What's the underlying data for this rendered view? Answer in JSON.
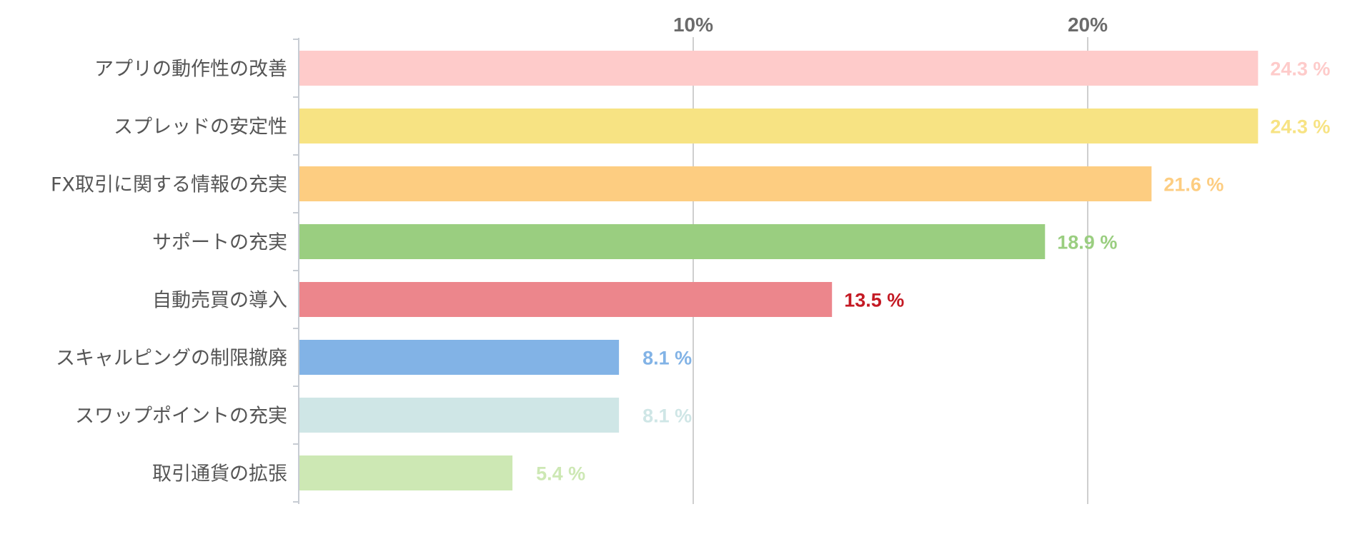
{
  "chart_data": {
    "type": "bar",
    "orientation": "horizontal",
    "categories": [
      "アプリの動作性の改善",
      "スプレッドの安定性",
      "FX取引に関する情報の充実",
      "サポートの充実",
      "自動売買の導入",
      "スキャルピングの制限撤廃",
      "スワップポイントの充実",
      "取引通貨の拡張"
    ],
    "values": [
      24.3,
      24.3,
      21.6,
      18.9,
      13.5,
      8.1,
      8.1,
      5.4
    ],
    "value_labels": [
      "24.3 %",
      "24.3 %",
      "21.6 %",
      "18.9 %",
      "13.5 %",
      "8.1 %",
      "8.1 %",
      "5.4 %"
    ],
    "bar_colors": [
      "#fecbca",
      "#f7e383",
      "#fdcd81",
      "#9ace80",
      "#ec868c",
      "#82b3e6",
      "#cfe6e6",
      "#cde8b4"
    ],
    "label_colors": [
      "#fecbca",
      "#f7e383",
      "#fdcd81",
      "#9ace80",
      "#c41a24",
      "#82b3e6",
      "#cfe6e6",
      "#cde8b4"
    ],
    "xticks": [
      10,
      20
    ],
    "xtick_labels": [
      "10%",
      "20%"
    ],
    "xlim": [
      0,
      24.3
    ],
    "grid": true,
    "axis_position": "top"
  }
}
